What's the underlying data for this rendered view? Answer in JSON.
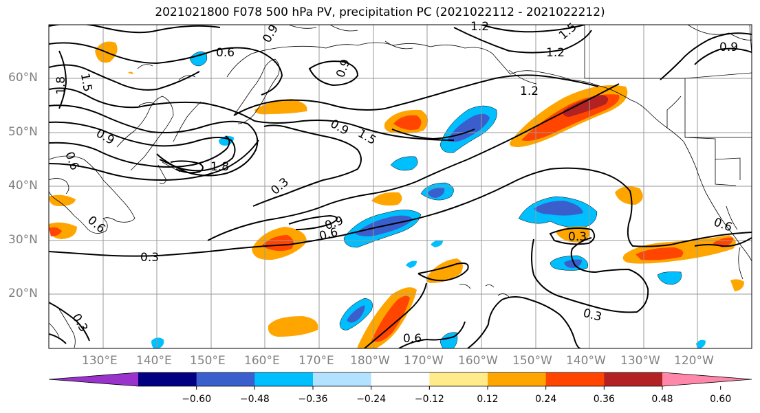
{
  "title": "2021021800 F078 500 hPa PV, precipitation PC (2021022112 - 2021022212)",
  "map": {
    "lat_ticks": [
      "60°N",
      "50°N",
      "40°N",
      "30°N",
      "20°N"
    ],
    "lon_ticks": [
      "130°E",
      "140°E",
      "150°E",
      "160°E",
      "170°E",
      "180°W",
      "170°W",
      "160°W",
      "150°W",
      "140°W",
      "130°W",
      "120°W"
    ],
    "extent": {
      "lon_min": 120,
      "lon_max": 250,
      "lat_min": 10,
      "lat_max": 70
    },
    "contour_labels": [
      "0.9",
      "1.5",
      "0.6",
      "1.2",
      "0.9",
      "1.8",
      "1.5",
      "1.2",
      "0.9",
      "1.2",
      "0.9",
      "0.9",
      "1.5",
      "0.6",
      "1.8",
      "0.3",
      "0.9",
      "0.6",
      "0.6",
      "0.3",
      "0.3",
      "0.3",
      "0.6",
      "0.3",
      "0.6"
    ],
    "gridlines": true,
    "contour_color": "#000000",
    "coast_color": "#000000"
  },
  "colorbar": {
    "colors": [
      "#9933cc",
      "#000080",
      "#3a5fcd",
      "#00bfff",
      "#b2e2ff",
      "#ffffff",
      "#ffeb8a",
      "#ffa500",
      "#ff4500",
      "#b22222",
      "#ff88aa"
    ],
    "ticks": [
      "−0.60",
      "−0.48",
      "−0.36",
      "−0.24",
      "−0.12",
      "0.12",
      "0.24",
      "0.36",
      "0.48",
      "0.60"
    ],
    "levels": [
      -0.6,
      -0.48,
      -0.36,
      -0.24,
      -0.12,
      0.12,
      0.24,
      0.36,
      0.48,
      0.6
    ],
    "extend": "both"
  }
}
